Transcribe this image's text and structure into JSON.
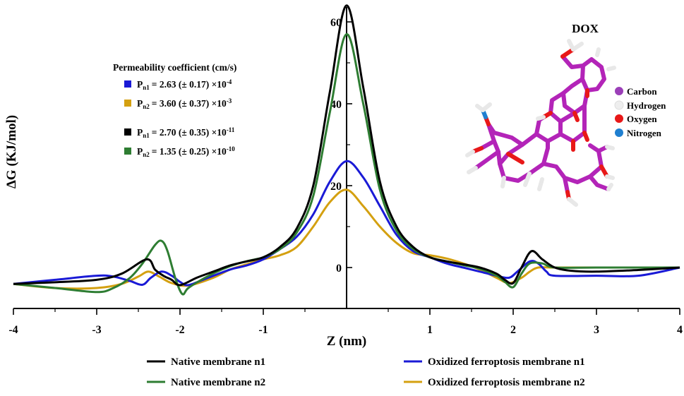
{
  "chart_data": {
    "type": "line",
    "title": "",
    "xlabel": "Z (nm)",
    "ylabel": "ΔG (KJ/mol)",
    "xlim": [
      -4,
      4
    ],
    "ylim": [
      -10,
      66
    ],
    "x_ticks": [
      -4,
      -3,
      -2,
      -1,
      1,
      2,
      3,
      4
    ],
    "x_tick_labels": [
      "-4",
      "-3",
      "-2",
      "-1",
      "1",
      "2",
      "3",
      "4"
    ],
    "y_ticks": [
      0,
      20,
      40,
      60
    ],
    "y_tick_labels": [
      "0",
      "20",
      "40",
      "60"
    ],
    "series": [
      {
        "name": "Native membrane  n1",
        "color": "#000000",
        "points": [
          [
            -4,
            -4
          ],
          [
            -3.5,
            -3.6
          ],
          [
            -3,
            -3
          ],
          [
            -2.7,
            -1.5
          ],
          [
            -2.4,
            2
          ],
          [
            -2.3,
            -0.5
          ],
          [
            -2.2,
            -2
          ],
          [
            -2.1,
            -3
          ],
          [
            -2,
            -4.3
          ],
          [
            -1.8,
            -2.5
          ],
          [
            -1.6,
            -1
          ],
          [
            -1.4,
            0.5
          ],
          [
            -1.2,
            1.5
          ],
          [
            -1,
            2.5
          ],
          [
            -0.8,
            5
          ],
          [
            -0.6,
            9.5
          ],
          [
            -0.4,
            20
          ],
          [
            -0.2,
            43
          ],
          [
            0,
            64
          ],
          [
            0.2,
            44
          ],
          [
            0.4,
            21
          ],
          [
            0.6,
            10
          ],
          [
            0.8,
            5
          ],
          [
            1,
            2.5
          ],
          [
            1.2,
            1.5
          ],
          [
            1.4,
            0.8
          ],
          [
            1.6,
            0
          ],
          [
            1.8,
            -1.5
          ],
          [
            1.9,
            -3
          ],
          [
            2,
            -3.8
          ],
          [
            2.1,
            0
          ],
          [
            2.22,
            4
          ],
          [
            2.35,
            2
          ],
          [
            2.5,
            0
          ],
          [
            2.7,
            -0.8
          ],
          [
            3,
            -1
          ],
          [
            3.5,
            -0.6
          ],
          [
            4,
            0
          ]
        ]
      },
      {
        "name": "Native membrane  n2",
        "color": "#2e7d32",
        "points": [
          [
            -4,
            -4
          ],
          [
            -3.5,
            -5
          ],
          [
            -3,
            -6
          ],
          [
            -2.8,
            -5
          ],
          [
            -2.6,
            -2.5
          ],
          [
            -2.45,
            1
          ],
          [
            -2.3,
            5.5
          ],
          [
            -2.22,
            6.5
          ],
          [
            -2.15,
            4
          ],
          [
            -2.05,
            -3
          ],
          [
            -1.97,
            -6.5
          ],
          [
            -1.9,
            -5
          ],
          [
            -1.7,
            -2.5
          ],
          [
            -1.5,
            -0.5
          ],
          [
            -1.3,
            1
          ],
          [
            -1.1,
            2
          ],
          [
            -1,
            2.5
          ],
          [
            -0.8,
            4.5
          ],
          [
            -0.6,
            8.5
          ],
          [
            -0.4,
            17.5
          ],
          [
            -0.2,
            38
          ],
          [
            0,
            57
          ],
          [
            0.2,
            40
          ],
          [
            0.4,
            19
          ],
          [
            0.6,
            9
          ],
          [
            0.8,
            4.5
          ],
          [
            1,
            2.5
          ],
          [
            1.2,
            1.5
          ],
          [
            1.4,
            0.6
          ],
          [
            1.6,
            -0.3
          ],
          [
            1.8,
            -2
          ],
          [
            1.9,
            -3.5
          ],
          [
            2,
            -4.8
          ],
          [
            2.1,
            -1.5
          ],
          [
            2.2,
            1
          ],
          [
            2.35,
            1
          ],
          [
            2.5,
            0
          ],
          [
            3,
            0
          ],
          [
            4,
            0
          ]
        ]
      },
      {
        "name": "Oxidized ferroptosis membrane  n1",
        "color": "#1a1ad6",
        "points": [
          [
            -4,
            -4
          ],
          [
            -3.5,
            -3
          ],
          [
            -3,
            -2
          ],
          [
            -2.8,
            -2.2
          ],
          [
            -2.6,
            -3.3
          ],
          [
            -2.45,
            -4.2
          ],
          [
            -2.35,
            -2.5
          ],
          [
            -2.22,
            -1
          ],
          [
            -2.1,
            -2
          ],
          [
            -2,
            -3.5
          ],
          [
            -1.9,
            -4.3
          ],
          [
            -1.7,
            -2.8
          ],
          [
            -1.4,
            -0.5
          ],
          [
            -1.2,
            0.5
          ],
          [
            -1,
            2
          ],
          [
            -0.8,
            4.5
          ],
          [
            -0.6,
            7.5
          ],
          [
            -0.4,
            13
          ],
          [
            -0.2,
            21
          ],
          [
            0,
            26
          ],
          [
            0.2,
            22
          ],
          [
            0.4,
            15
          ],
          [
            0.6,
            8
          ],
          [
            0.8,
            4
          ],
          [
            1,
            2.5
          ],
          [
            1.2,
            1
          ],
          [
            1.4,
            0
          ],
          [
            1.6,
            -1
          ],
          [
            1.8,
            -2
          ],
          [
            1.95,
            -2.5
          ],
          [
            2.05,
            -1
          ],
          [
            2.2,
            1.5
          ],
          [
            2.3,
            1
          ],
          [
            2.4,
            -1
          ],
          [
            2.5,
            -2
          ],
          [
            3,
            -2
          ],
          [
            3.5,
            -2
          ],
          [
            4,
            0
          ]
        ]
      },
      {
        "name": "Oxidized ferroptosis membrane  n2",
        "color": "#d4a010",
        "points": [
          [
            -4,
            -4
          ],
          [
            -3.5,
            -5
          ],
          [
            -3,
            -5
          ],
          [
            -2.7,
            -4
          ],
          [
            -2.5,
            -2.2
          ],
          [
            -2.38,
            -1
          ],
          [
            -2.25,
            -2.2
          ],
          [
            -2.1,
            -3.8
          ],
          [
            -1.9,
            -4.4
          ],
          [
            -1.6,
            -2.5
          ],
          [
            -1.4,
            -0.5
          ],
          [
            -1.2,
            0.8
          ],
          [
            -1,
            2
          ],
          [
            -0.8,
            3
          ],
          [
            -0.6,
            5
          ],
          [
            -0.4,
            10
          ],
          [
            -0.2,
            16
          ],
          [
            0,
            19
          ],
          [
            0.2,
            15
          ],
          [
            0.4,
            10
          ],
          [
            0.6,
            6
          ],
          [
            0.8,
            3.5
          ],
          [
            1,
            3
          ],
          [
            1.2,
            2.2
          ],
          [
            1.4,
            1
          ],
          [
            1.6,
            -0.5
          ],
          [
            1.8,
            -2.5
          ],
          [
            1.95,
            -3.8
          ],
          [
            2.1,
            -2.5
          ],
          [
            2.2,
            -1
          ],
          [
            2.3,
            0
          ],
          [
            2.5,
            0
          ],
          [
            3,
            0
          ],
          [
            4,
            0
          ]
        ]
      }
    ],
    "legend": {
      "position": "bottom",
      "entries": [
        {
          "label": "Native membrane  n1",
          "color": "#000000"
        },
        {
          "label": "Oxidized ferroptosis membrane  n1",
          "color": "#1a1ad6"
        },
        {
          "label": "Native membrane  n2",
          "color": "#2e7d32"
        },
        {
          "label": "Oxidized ferroptosis membrane  n2",
          "color": "#d4a010"
        }
      ]
    },
    "annotation": {
      "title": "Permeability coefficient (cm/s)",
      "rows": [
        {
          "color": "#1a1ad6",
          "p_sub": "n1",
          "value": "= 2.63 (± 0.17) ×10",
          "exp": "-4"
        },
        {
          "color": "#d4a010",
          "p_sub": "n2",
          "value": "= 3.60 (± 0.37) ×10",
          "exp": "-3"
        },
        {
          "color": "#000000",
          "p_sub": "n1",
          "value": "= 2.70 (± 0.35) ×10",
          "exp": "-11"
        },
        {
          "color": "#2e7d32",
          "p_sub": "n2",
          "value": "= 1.35 (± 0.25) ×10",
          "exp": "-10"
        }
      ]
    },
    "molecule": {
      "name": "DOX",
      "atom_legend": [
        {
          "label": "Carbon",
          "color": "#9b3fb8"
        },
        {
          "label": "Hydrogen",
          "color": "#eeeeee"
        },
        {
          "label": "Oxygen",
          "color": "#e81818"
        },
        {
          "label": "Nitrogen",
          "color": "#1f7fd0"
        }
      ]
    }
  }
}
